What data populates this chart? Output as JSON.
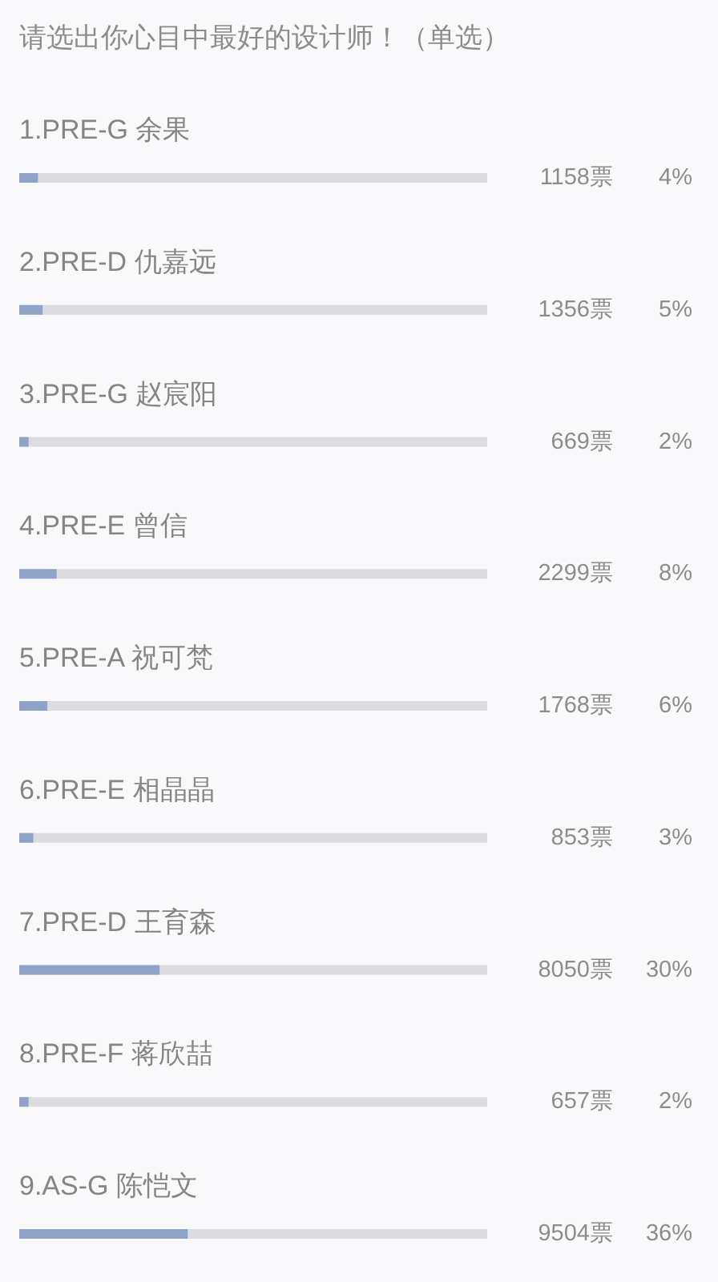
{
  "chart_data": {
    "type": "bar",
    "orientation": "horizontal",
    "title": "请选出你心目中最好的设计师！（单选）",
    "categories": [
      "1.PRE-G 余果",
      "2.PRE-D 仇嘉远",
      "3.PRE-G 赵宸阳",
      "4.PRE-E 曾信",
      "5.PRE-A 祝可梵",
      "6.PRE-E 相晶晶",
      "7.PRE-D 王育森",
      "8.PRE-F 蒋欣喆",
      "9.AS-G 陈恺文"
    ],
    "values": [
      4,
      5,
      2,
      8,
      6,
      3,
      30,
      2,
      36
    ],
    "value_labels": [
      "4%",
      "5%",
      "2%",
      "8%",
      "6%",
      "3%",
      "30%",
      "2%",
      "36%"
    ],
    "color": "#8fa3c8",
    "xlim": [
      0,
      100
    ],
    "tick_labels": "y",
    "annotations": [
      "1158票",
      "1356票",
      "669票",
      "2299票",
      "1768票",
      "853票",
      "8050票",
      "657票",
      "9504票"
    ]
  }
}
